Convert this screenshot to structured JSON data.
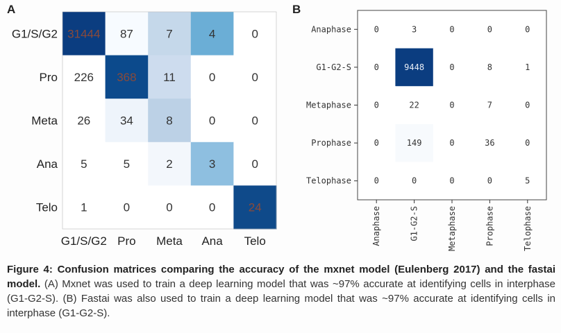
{
  "panels": {
    "a_letter": "A",
    "b_letter": "B"
  },
  "chart_data": [
    {
      "type": "heatmap",
      "panel": "A",
      "rows": [
        "G1/S/G2",
        "Pro",
        "Meta",
        "Ana",
        "Telo"
      ],
      "columns": [
        "G1/S/G2",
        "Pro",
        "Meta",
        "Ana",
        "Telo"
      ],
      "values": [
        [
          31444,
          87,
          7,
          4,
          0
        ],
        [
          226,
          368,
          11,
          0,
          0
        ],
        [
          26,
          34,
          8,
          0,
          0
        ],
        [
          5,
          5,
          2,
          3,
          0
        ],
        [
          1,
          0,
          0,
          0,
          24
        ]
      ],
      "cell_labels": [
        [
          "31444",
          "87",
          "7",
          "4",
          "0"
        ],
        [
          "226",
          "368",
          "11",
          "0",
          "0"
        ],
        [
          "26",
          "34",
          "8",
          "0",
          "0"
        ],
        [
          "5",
          "5",
          "2",
          "3",
          "0"
        ],
        [
          "1",
          "0",
          "0",
          "0",
          "24"
        ]
      ],
      "colormap": "Blues",
      "cell_colors": [
        [
          "#0b3d80",
          "#f7fbff",
          "#c5d8ea",
          "#6baed6",
          "#ffffff"
        ],
        [
          "#ffffff",
          "#0c4a8c",
          "#cddcee",
          "#ffffff",
          "#ffffff"
        ],
        [
          "#ffffff",
          "#eef4fb",
          "#bcd1e6",
          "#ffffff",
          "#ffffff"
        ],
        [
          "#ffffff",
          "#ffffff",
          "#f3f7fc",
          "#8ebfe0",
          "#ffffff"
        ],
        [
          "#ffffff",
          "#ffffff",
          "#ffffff",
          "#ffffff",
          "#0f4a8a"
        ]
      ]
    },
    {
      "type": "heatmap",
      "panel": "B",
      "rows": [
        "Anaphase",
        "G1-G2-S",
        "Metaphase",
        "Prophase",
        "Telophase"
      ],
      "columns": [
        "Anaphase",
        "G1-G2-S",
        "Metaphase",
        "Prophase",
        "Telophase"
      ],
      "values": [
        [
          0,
          3,
          0,
          0,
          0
        ],
        [
          0,
          9448,
          0,
          8,
          1
        ],
        [
          0,
          22,
          0,
          7,
          0
        ],
        [
          0,
          149,
          0,
          36,
          0
        ],
        [
          0,
          0,
          0,
          0,
          5
        ]
      ],
      "cell_labels": [
        [
          "0",
          "3",
          "0",
          "0",
          "0"
        ],
        [
          "0",
          "9448",
          "0",
          "8",
          "1"
        ],
        [
          "0",
          "22",
          "0",
          "7",
          "0"
        ],
        [
          "0",
          "149",
          "0",
          "36",
          "0"
        ],
        [
          "0",
          "0",
          "0",
          "0",
          "5"
        ]
      ],
      "colormap": "Blues",
      "cell_colors": [
        [
          "#ffffff",
          "#ffffff",
          "#ffffff",
          "#ffffff",
          "#ffffff"
        ],
        [
          "#ffffff",
          "#0b3d80",
          "#ffffff",
          "#ffffff",
          "#ffffff"
        ],
        [
          "#ffffff",
          "#ffffff",
          "#ffffff",
          "#ffffff",
          "#ffffff"
        ],
        [
          "#ffffff",
          "#f7fafd",
          "#ffffff",
          "#ffffff",
          "#ffffff"
        ],
        [
          "#ffffff",
          "#ffffff",
          "#ffffff",
          "#ffffff",
          "#ffffff"
        ]
      ]
    }
  ],
  "caption": {
    "bold": "Figure 4: Confusion matrices comparing the accuracy of the mxnet model (Eulenberg 2017) and the fastai model.",
    "text": " (A) Mxnet was used to train a deep learning model that was ~97% accurate at identifying cells in interphase (G1-G2-S).  (B) Fastai was also used to train a deep learning model that was ~97% accurate at identifying cells in interphase (G1-G2-S)."
  }
}
